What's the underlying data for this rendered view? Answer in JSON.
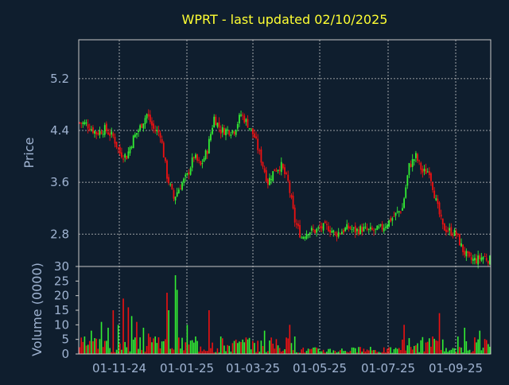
{
  "colors": {
    "background": "#0f1e2e",
    "axis": "#c8c8c8",
    "grid": "#c8c8c8",
    "title": "#ffff33",
    "label": "#9fb3d1",
    "up": "#33ee33",
    "down": "#ee1111"
  },
  "chart_data": [
    {
      "type": "candlestick",
      "title": "WPRT - last updated 02/10/2025",
      "ylabel": "Price",
      "ylim": [
        2.3,
        5.8
      ],
      "yticks": [
        "5.2",
        "4.4",
        "3.6",
        "2.8"
      ],
      "xticks": [
        "01-11-24",
        "01-01-25",
        "01-03-25",
        "01-05-25",
        "01-07-25",
        "01-09-25"
      ],
      "grid": true,
      "price_anchors": [
        {
          "x": 0,
          "p": 4.52
        },
        {
          "x": 4,
          "p": 4.5
        },
        {
          "x": 10,
          "p": 4.36
        },
        {
          "x": 15,
          "p": 4.42
        },
        {
          "x": 20,
          "p": 4.3
        },
        {
          "x": 24,
          "p": 4.05
        },
        {
          "x": 28,
          "p": 4.0
        },
        {
          "x": 32,
          "p": 4.28
        },
        {
          "x": 36,
          "p": 4.45
        },
        {
          "x": 40,
          "p": 4.65
        },
        {
          "x": 44,
          "p": 4.42
        },
        {
          "x": 48,
          "p": 4.35
        },
        {
          "x": 52,
          "p": 3.7
        },
        {
          "x": 56,
          "p": 3.35
        },
        {
          "x": 60,
          "p": 3.55
        },
        {
          "x": 64,
          "p": 3.7
        },
        {
          "x": 68,
          "p": 4.0
        },
        {
          "x": 72,
          "p": 3.85
        },
        {
          "x": 76,
          "p": 4.1
        },
        {
          "x": 80,
          "p": 4.6
        },
        {
          "x": 84,
          "p": 4.4
        },
        {
          "x": 88,
          "p": 4.4
        },
        {
          "x": 92,
          "p": 4.4
        },
        {
          "x": 96,
          "p": 4.65
        },
        {
          "x": 100,
          "p": 4.5
        },
        {
          "x": 104,
          "p": 4.3
        },
        {
          "x": 108,
          "p": 3.95
        },
        {
          "x": 112,
          "p": 3.6
        },
        {
          "x": 116,
          "p": 3.8
        },
        {
          "x": 120,
          "p": 3.85
        },
        {
          "x": 124,
          "p": 3.6
        },
        {
          "x": 128,
          "p": 3.0
        },
        {
          "x": 132,
          "p": 2.75
        },
        {
          "x": 136,
          "p": 2.85
        },
        {
          "x": 140,
          "p": 2.85
        },
        {
          "x": 144,
          "p": 2.9
        },
        {
          "x": 148,
          "p": 2.9
        },
        {
          "x": 152,
          "p": 2.8
        },
        {
          "x": 156,
          "p": 2.85
        },
        {
          "x": 160,
          "p": 2.9
        },
        {
          "x": 164,
          "p": 2.85
        },
        {
          "x": 168,
          "p": 2.88
        },
        {
          "x": 172,
          "p": 2.85
        },
        {
          "x": 176,
          "p": 2.85
        },
        {
          "x": 180,
          "p": 2.9
        },
        {
          "x": 184,
          "p": 3.0
        },
        {
          "x": 188,
          "p": 3.1
        },
        {
          "x": 192,
          "p": 3.2
        },
        {
          "x": 196,
          "p": 3.85
        },
        {
          "x": 200,
          "p": 4.0
        },
        {
          "x": 204,
          "p": 3.75
        },
        {
          "x": 208,
          "p": 3.78
        },
        {
          "x": 212,
          "p": 3.3
        },
        {
          "x": 216,
          "p": 2.9
        },
        {
          "x": 220,
          "p": 2.85
        },
        {
          "x": 224,
          "p": 2.8
        },
        {
          "x": 228,
          "p": 2.55
        },
        {
          "x": 232,
          "p": 2.4
        },
        {
          "x": 236,
          "p": 2.4
        },
        {
          "x": 240,
          "p": 2.45
        },
        {
          "x": 244,
          "p": 2.4
        }
      ],
      "volume_peaks": [
        {
          "i": 3,
          "v": 6
        },
        {
          "i": 7,
          "v": 8
        },
        {
          "i": 13,
          "v": 11
        },
        {
          "i": 17,
          "v": 9
        },
        {
          "i": 20,
          "v": 15
        },
        {
          "i": 23,
          "v": 10
        },
        {
          "i": 26,
          "v": 19
        },
        {
          "i": 29,
          "v": 16
        },
        {
          "i": 31,
          "v": 13
        },
        {
          "i": 34,
          "v": 11
        },
        {
          "i": 38,
          "v": 9
        },
        {
          "i": 41,
          "v": 7
        },
        {
          "i": 45,
          "v": 6
        },
        {
          "i": 52,
          "v": 21
        },
        {
          "i": 53,
          "v": 15
        },
        {
          "i": 57,
          "v": 27
        },
        {
          "i": 58,
          "v": 22
        },
        {
          "i": 64,
          "v": 10
        },
        {
          "i": 69,
          "v": 6
        },
        {
          "i": 77,
          "v": 15
        },
        {
          "i": 84,
          "v": 6
        },
        {
          "i": 100,
          "v": 5
        },
        {
          "i": 110,
          "v": 8
        },
        {
          "i": 125,
          "v": 10
        },
        {
          "i": 128,
          "v": 6
        },
        {
          "i": 193,
          "v": 10
        },
        {
          "i": 210,
          "v": 6
        },
        {
          "i": 214,
          "v": 14
        },
        {
          "i": 225,
          "v": 6
        },
        {
          "i": 229,
          "v": 9
        },
        {
          "i": 238,
          "v": 8
        }
      ]
    },
    {
      "type": "bar",
      "ylabel": "Volume (0000)",
      "ylim": [
        0,
        30
      ],
      "yticks": [
        "0",
        "5",
        "10",
        "15",
        "20",
        "25",
        "30"
      ]
    }
  ]
}
